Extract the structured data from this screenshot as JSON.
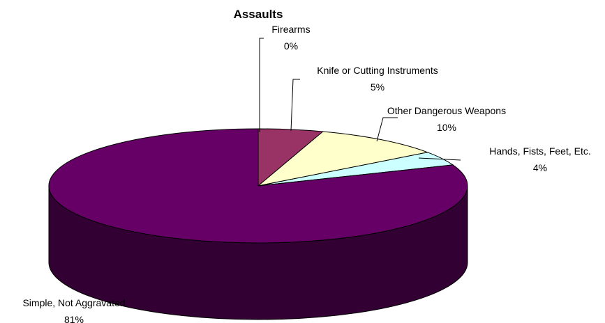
{
  "chart_data": {
    "type": "pie",
    "title": "Assaults",
    "slices": [
      {
        "label": "Firearms",
        "value": 0,
        "value_label": "0%",
        "color": "#ffffff"
      },
      {
        "label": "Knife or Cutting Instruments",
        "value": 5,
        "value_label": "5%",
        "color": "#993366"
      },
      {
        "label": "Other Dangerous Weapons",
        "value": 10,
        "value_label": "10%",
        "color": "#ffffcc"
      },
      {
        "label": "Hands, Fists, Feet, Etc.",
        "value": 4,
        "value_label": "4%",
        "color": "#ccffff"
      },
      {
        "label": "Simple, Not Aggravated",
        "value": 81,
        "value_label": "81%",
        "color": "#660066"
      }
    ],
    "three_d": true,
    "legend": "none",
    "data_labels": "outside-with-leader-lines"
  }
}
